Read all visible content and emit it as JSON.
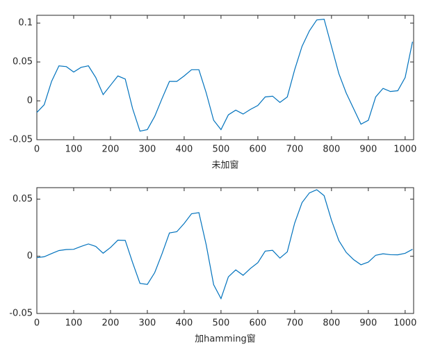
{
  "chart_data": [
    {
      "type": "line",
      "xlabel": "未加窗",
      "x": [
        0,
        20,
        40,
        60,
        80,
        100,
        120,
        140,
        160,
        180,
        200,
        220,
        240,
        260,
        280,
        300,
        320,
        340,
        360,
        380,
        400,
        420,
        440,
        460,
        480,
        500,
        520,
        540,
        560,
        580,
        600,
        620,
        640,
        660,
        680,
        700,
        720,
        740,
        760,
        780,
        800,
        820,
        840,
        860,
        880,
        900,
        920,
        940,
        960,
        980,
        1000,
        1020
      ],
      "series": [
        {
          "color": "#0072bd",
          "values": [
            -0.015,
            -0.005,
            0.025,
            0.045,
            0.044,
            0.037,
            0.043,
            0.045,
            0.03,
            0.008,
            0.02,
            0.032,
            0.028,
            -0.01,
            -0.039,
            -0.037,
            -0.02,
            0.003,
            0.025,
            0.025,
            0.032,
            0.04,
            0.04,
            0.01,
            -0.025,
            -0.037,
            -0.018,
            -0.012,
            -0.017,
            -0.011,
            -0.006,
            0.005,
            0.006,
            -0.002,
            0.005,
            0.04,
            0.07,
            0.09,
            0.104,
            0.105,
            0.07,
            0.035,
            0.01,
            -0.01,
            -0.03,
            -0.025,
            0.005,
            0.016,
            0.012,
            0.013,
            0.03,
            0.076
          ]
        }
      ],
      "xlim": [
        0,
        1023
      ],
      "xticks": [
        0,
        100,
        200,
        300,
        400,
        500,
        600,
        700,
        800,
        900,
        1000
      ],
      "ylim": [
        -0.05,
        0.11
      ],
      "yticks": [
        -0.05,
        0,
        0.05,
        0.1
      ]
    },
    {
      "type": "line",
      "xlabel": "加hamming窗",
      "x": [
        0,
        20,
        40,
        60,
        80,
        100,
        120,
        140,
        160,
        180,
        200,
        220,
        240,
        260,
        280,
        300,
        320,
        340,
        360,
        380,
        400,
        420,
        440,
        460,
        480,
        500,
        520,
        540,
        560,
        580,
        600,
        620,
        640,
        660,
        680,
        700,
        720,
        740,
        760,
        780,
        800,
        820,
        840,
        860,
        880,
        900,
        920,
        940,
        960,
        980,
        1000,
        1020
      ],
      "series": [
        {
          "color": "#0072bd",
          "values": [
            -0.0012,
            -0.0004,
            0.0024,
            0.005,
            0.0059,
            0.0061,
            0.0086,
            0.0108,
            0.0086,
            0.0027,
            0.0077,
            0.0141,
            0.0139,
            -0.0055,
            -0.0237,
            -0.0246,
            -0.0143,
            0.0023,
            0.0204,
            0.0215,
            0.0287,
            0.0372,
            0.0382,
            0.0098,
            -0.0248,
            -0.037,
            -0.018,
            -0.0119,
            -0.0166,
            -0.0106,
            -0.0056,
            0.0045,
            0.0052,
            -0.0016,
            0.0039,
            0.029,
            0.0469,
            0.0554,
            0.0582,
            0.053,
            0.0315,
            0.0137,
            0.0034,
            -0.0029,
            -0.0074,
            -0.0051,
            0.0009,
            0.0022,
            0.0014,
            0.0013,
            0.0026,
            0.0061
          ]
        }
      ],
      "xlim": [
        0,
        1023
      ],
      "xticks": [
        0,
        100,
        200,
        300,
        400,
        500,
        600,
        700,
        800,
        900,
        1000
      ],
      "ylim": [
        -0.05,
        0.06
      ],
      "yticks": [
        -0.05,
        0,
        0.05
      ]
    }
  ]
}
